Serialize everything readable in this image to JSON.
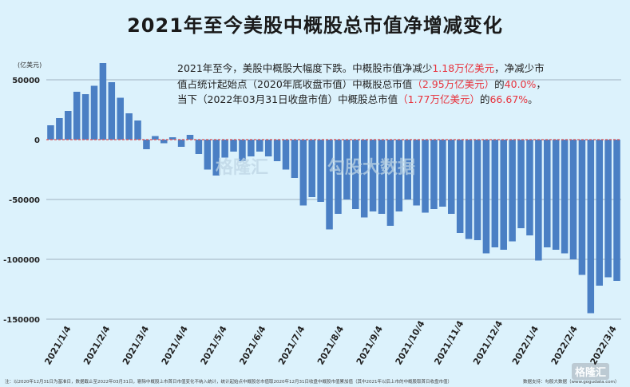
{
  "title": "2021年至今美股中概股总市值净增减变化",
  "annotation": {
    "line1_a": "2021年至今，美股中概股大幅度下跌。中概股市值净减少",
    "line1_red": "1.18万亿美元",
    "line1_b": "，净减少市",
    "line2_a": "值占统计起始点（2020年底收盘市值）中概股总市值",
    "line2_red1": "（2.95万亿美元）",
    "line2_b": "的",
    "line2_red2": "40.0%",
    "line2_c": "，",
    "line3_a": "当下（2022年03月31日收盘市值）中概股总市值",
    "line3_red1": "（1.77万亿美元）",
    "line3_b": "的",
    "line3_red2": "66.67%",
    "line3_c": "。"
  },
  "footer_note": "注：以2020年12月31日为基准日，数据截止至2022年03月31日，剔除中概股上市首日市值变化不纳入统计，统计起始点中概股总市值取2020年12月31日收盘中概股市值累加值（其中2021年以后上市的中概股取首日收盘市值）",
  "source": "数据支持：勾股大数据（www.gogudata.com）",
  "logo_text": "格隆汇",
  "watermarks": [
    "格隆汇",
    "勾股大数据"
  ],
  "colors": {
    "bar": "#4a7fc4",
    "zero_line": "#e05050",
    "grid": "#9fb3bf",
    "background": "#dcf2fc",
    "highlight": "#e8323c"
  },
  "chart_data": {
    "type": "bar",
    "title": "2021年至今美股中概股总市值净增减变化",
    "ylabel": "(亿美元)",
    "ylim": [
      -150000,
      60000
    ],
    "yticks": [
      50000,
      0,
      -50000,
      -100000,
      -150000
    ],
    "ytick_labels": [
      "50000",
      "0",
      "-50000",
      "-100000",
      "-150000"
    ],
    "xtick_labels": [
      "2021/1/4",
      "2021/2/4",
      "2021/3/4",
      "2021/4/4",
      "2021/5/4",
      "2021/6/4",
      "2021/7/4",
      "2021/8/4",
      "2021/9/4",
      "2021/10/4",
      "2021/11/4",
      "2021/12/4",
      "2022/1/4",
      "2022/2/4",
      "2022/3/4"
    ],
    "x_range": [
      "2021/1/4",
      "2022/3/31"
    ],
    "grid": true,
    "values": [
      12000,
      18000,
      24000,
      40000,
      38000,
      45000,
      64000,
      48000,
      35000,
      22000,
      16000,
      -8000,
      3000,
      -3000,
      2000,
      -6000,
      4000,
      -12000,
      -25000,
      -30000,
      -15000,
      -10000,
      -18000,
      -14000,
      -10000,
      -14000,
      -18000,
      -25000,
      -32000,
      -55000,
      -48000,
      -52000,
      -75000,
      -62000,
      -50000,
      -58000,
      -65000,
      -60000,
      -62000,
      -72000,
      -60000,
      -50000,
      -55000,
      -61000,
      -58000,
      -56000,
      -62000,
      -78000,
      -83000,
      -84000,
      -95000,
      -90000,
      -92000,
      -85000,
      -74000,
      -80000,
      -101000,
      -90000,
      -92000,
      -95000,
      -100000,
      -113000,
      -145000,
      -122000,
      -115000,
      -118000
    ]
  }
}
